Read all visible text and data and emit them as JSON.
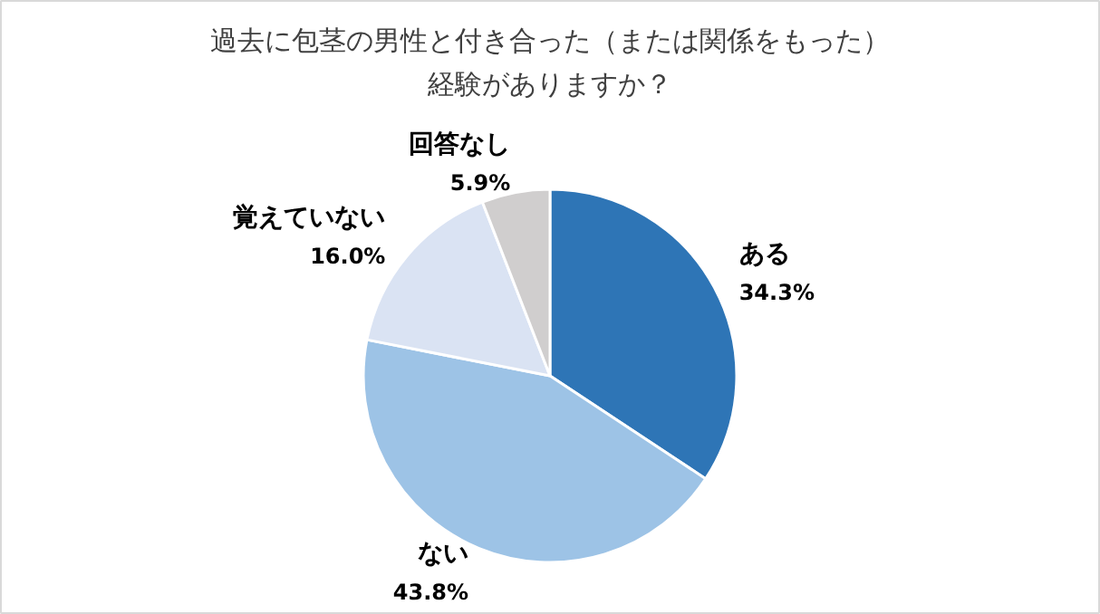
{
  "chart_data": {
    "type": "pie",
    "title": "過去に包茎の男性と付き合った（または関係をもった）経験がありますか？",
    "categories": [
      "ある",
      "ない",
      "覚えていない",
      "回答なし"
    ],
    "values": [
      34.3,
      43.8,
      16.0,
      5.9
    ],
    "colors": [
      "#2e75b6",
      "#9dc3e6",
      "#dae3f3",
      "#d0cece"
    ],
    "value_labels": [
      "34.3%",
      "43.8%",
      "16.0%",
      "5.9%"
    ]
  }
}
